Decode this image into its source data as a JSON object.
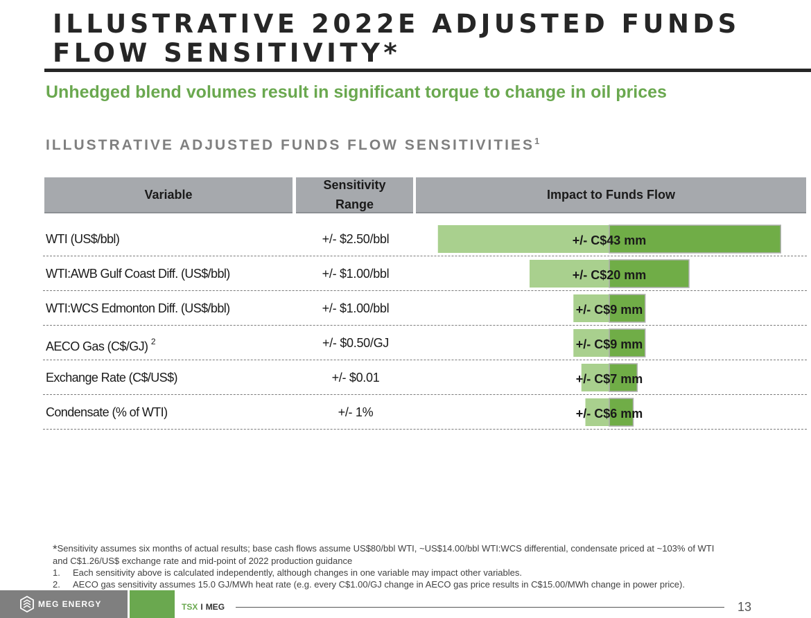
{
  "title": "ILLUSTRATIVE 2022E ADJUSTED FUNDS FLOW SENSITIVITY",
  "title_mark": "*",
  "subtitle": "Unhedged blend volumes result in significant torque to change in oil prices",
  "section_title": "ILLUSTRATIVE ADJUSTED FUNDS FLOW SENSITIVITIES",
  "section_title_sup": "1",
  "table": {
    "headers": {
      "variable": "Variable",
      "range_line1": "Sensitivity",
      "range_line2": "Range",
      "impact": "Impact to Funds Flow"
    },
    "rows": [
      {
        "variable": "WTI (US$/bbl)",
        "sup": "",
        "range": "+/- $2.50/bbl"
      },
      {
        "variable": "WTI:AWB Gulf Coast Diff. (US$/bbl)",
        "sup": "",
        "range": "+/- $1.00/bbl"
      },
      {
        "variable": "WTI:WCS Edmonton Diff. (US$/bbl)",
        "sup": "",
        "range": "+/- $1.00/bbl"
      },
      {
        "variable": "AECO Gas (C$/GJ)",
        "sup": "2",
        "range": "+/- $0.50/GJ"
      },
      {
        "variable": "Exchange Rate (C$/US$)",
        "sup": "",
        "range": "+/- $0.01"
      },
      {
        "variable": "Condensate (% of WTI)",
        "sup": "",
        "range": "+/- 1%"
      }
    ]
  },
  "chart_data": {
    "type": "bar",
    "orientation": "horizontal-tornado",
    "categories": [
      "WTI (US$/bbl)",
      "WTI:AWB Gulf Coast Diff. (US$/bbl)",
      "WTI:WCS Edmonton Diff. (US$/bbl)",
      "AECO Gas (C$/GJ)",
      "Exchange Rate (C$/US$)",
      "Condensate (% of WTI)"
    ],
    "values": [
      43,
      20,
      9,
      9,
      7,
      6
    ],
    "labels": [
      "+/- C$43 mm",
      "+/- C$20 mm",
      "+/- C$9 mm",
      "+/- C$9 mm",
      "+/- C$7 mm",
      "+/- C$6 mm"
    ],
    "unit": "C$ mm",
    "colors": {
      "negative": "#a9d08e",
      "positive": "#70ad47",
      "border": "#b0b0b0"
    }
  },
  "footnotes": {
    "star_mark": "*",
    "star_text_line1": "Sensitivity assumes six months of actual results; base cash flows assume US$80/bbl WTI, ~US$14.00/bbl WTI:WCS differential, condensate priced at ~103% of WTI",
    "star_text_line2": "and C$1.26/US$ exchange rate and mid-point of 2022 production guidance",
    "items": [
      {
        "num": "1.",
        "text": "Each sensitivity above is calculated independently, although changes in one variable may impact other variables."
      },
      {
        "num": "2.",
        "text": "AECO gas sensitivity assumes 15.0 GJ/MWh heat rate (e.g. every C$1.00/GJ change in AECO gas price results in C$15.00/MWh change in power price)."
      }
    ]
  },
  "footer": {
    "logo_text": "MEG ENERGY",
    "tsx": "TSX",
    "divider": "I",
    "meg": "MEG",
    "page_number": "13"
  }
}
